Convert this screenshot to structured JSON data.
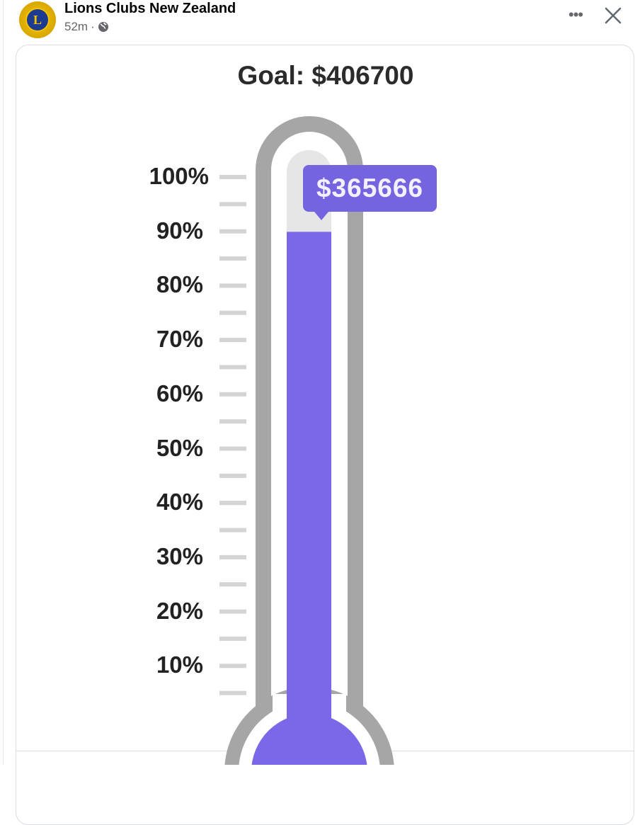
{
  "post": {
    "author": "Lions Clubs New Zealand",
    "time": "52m",
    "separator": "·",
    "privacy_icon": "globe-icon",
    "more_icon": "more-horizontal-icon",
    "close_icon": "close-icon",
    "more_label": "•••"
  },
  "colors": {
    "fill": "#7b68e8",
    "tube": "#a6a6a6",
    "empty": "#e6e6e6",
    "tooltip": "#7564e0"
  },
  "chart_data": {
    "type": "thermometer",
    "title": "Goal: $406700",
    "goal": 406700,
    "raised": 365666,
    "raised_label": "$365666",
    "percent_filled": 89.9,
    "tick_labels": [
      "100%",
      "90%",
      "80%",
      "70%",
      "60%",
      "50%",
      "40%",
      "30%",
      "20%",
      "10%"
    ]
  }
}
